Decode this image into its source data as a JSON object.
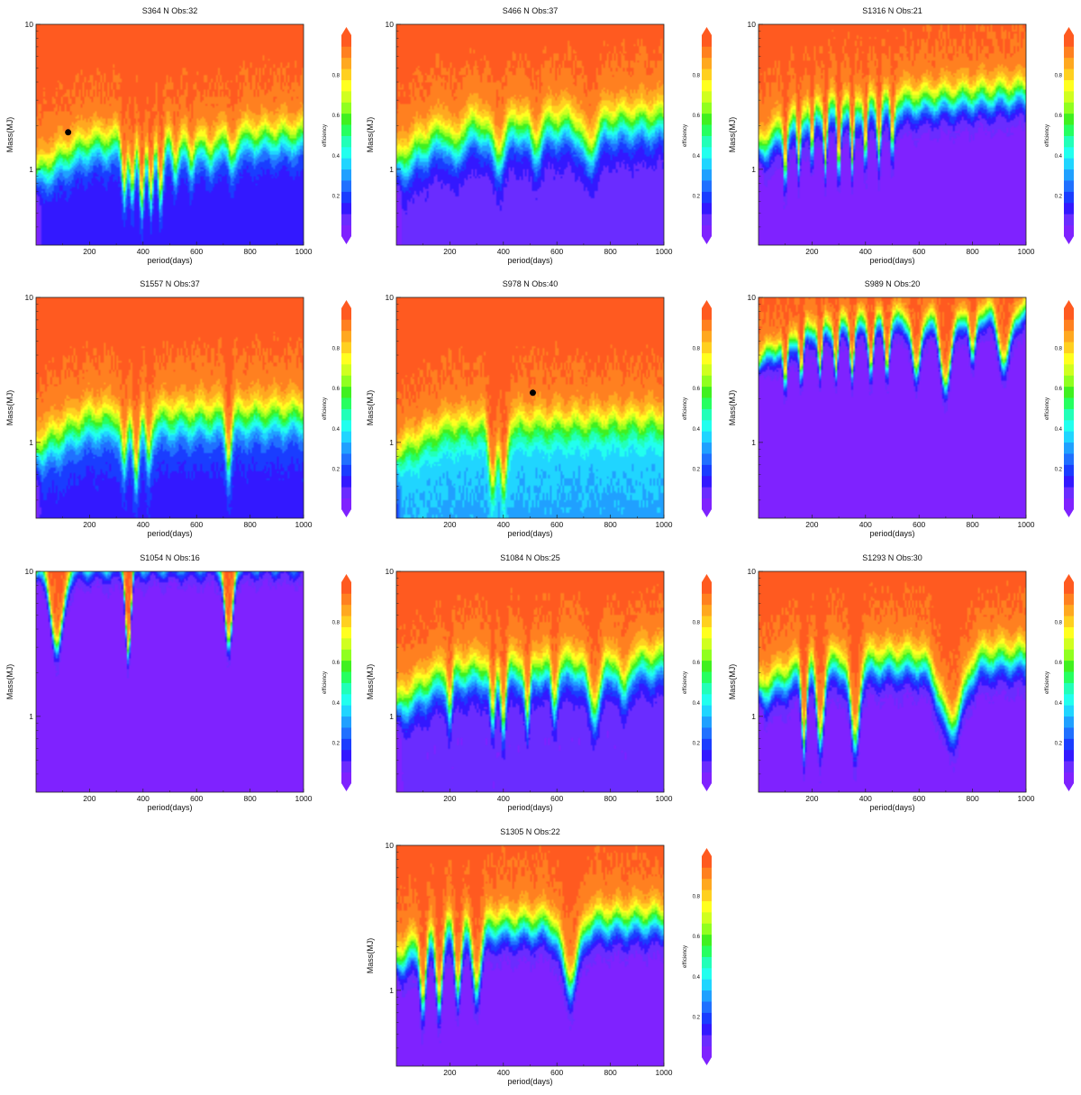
{
  "palette": [
    "#7f22ff",
    "#6a2cff",
    "#3318ff",
    "#1a3dff",
    "#2070ff",
    "#20a0ff",
    "#20d5ff",
    "#22ffee",
    "#22ffb8",
    "#26ff60",
    "#40f020",
    "#90ff20",
    "#d0ff20",
    "#ffff20",
    "#ffd020",
    "#ffa820",
    "#ff8020",
    "#ff5a20"
  ],
  "chart_data": [
    {
      "type": "heatmap",
      "title": "S364 N Obs:32",
      "xlabel": "period(days)",
      "ylabel": "Mass(MJ)",
      "colorbar_label": "efficiency",
      "xlim": [
        0,
        1000
      ],
      "ylim": [
        0.3,
        10
      ],
      "yscale": "log",
      "xticks": [
        200,
        400,
        600,
        800,
        1000
      ],
      "yticks": [
        1,
        10
      ],
      "cbar_ticks": [
        0.2,
        0.4,
        0.6,
        0.8
      ],
      "base_level": 0.13,
      "threshold_mass": [
        [
          0,
          0.9
        ],
        [
          200,
          1.45
        ],
        [
          1000,
          1.65
        ]
      ],
      "sharpness": 3.2,
      "spikes": [
        [
          330,
          0.3,
          12
        ],
        [
          360,
          0.35,
          12
        ],
        [
          395,
          0.4,
          12
        ],
        [
          430,
          0.4,
          12
        ],
        [
          465,
          0.35,
          12
        ],
        [
          520,
          0.2,
          14
        ],
        [
          580,
          0.2,
          15
        ],
        [
          650,
          0.15,
          18
        ],
        [
          730,
          0.15,
          18
        ]
      ],
      "points": [
        {
          "x": 120,
          "y": 1.8
        }
      ]
    },
    {
      "type": "heatmap",
      "title": "S466 N Obs:37",
      "xlabel": "period(days)",
      "ylabel": "Mass(MJ)",
      "colorbar_label": "efficiency",
      "xlim": [
        0,
        1000
      ],
      "ylim": [
        0.3,
        10
      ],
      "yscale": "log",
      "xticks": [
        200,
        400,
        600,
        800,
        1000
      ],
      "yticks": [
        1,
        10
      ],
      "cbar_ticks": [
        0.2,
        0.4,
        0.6,
        0.8
      ],
      "base_level": 0.08,
      "threshold_mass": [
        [
          0,
          1.0
        ],
        [
          200,
          1.8
        ],
        [
          1000,
          2.1
        ]
      ],
      "sharpness": 2.8,
      "spikes": [
        [
          220,
          0.15,
          25
        ],
        [
          380,
          0.2,
          30
        ],
        [
          520,
          0.15,
          25
        ],
        [
          720,
          0.2,
          35
        ]
      ],
      "points": []
    },
    {
      "type": "heatmap",
      "title": "S1316 N Obs:21",
      "xlabel": "period(days)",
      "ylabel": "Mass(MJ)",
      "colorbar_label": "efficiency",
      "xlim": [
        0,
        1000
      ],
      "ylim": [
        0.3,
        10
      ],
      "yscale": "log",
      "xticks": [
        200,
        400,
        600,
        800,
        1000
      ],
      "yticks": [
        1,
        10
      ],
      "cbar_ticks": [
        0.2,
        0.4,
        0.6,
        0.8
      ],
      "base_level": 0.02,
      "threshold_mass": [
        [
          0,
          1.3
        ],
        [
          200,
          2.4
        ],
        [
          1000,
          3.3
        ]
      ],
      "sharpness": 3.5,
      "spikes": [
        [
          100,
          0.3,
          8
        ],
        [
          150,
          0.3,
          8
        ],
        [
          200,
          0.3,
          8
        ],
        [
          250,
          0.35,
          8
        ],
        [
          300,
          0.4,
          8
        ],
        [
          350,
          0.4,
          8
        ],
        [
          400,
          0.35,
          8
        ],
        [
          450,
          0.3,
          9
        ],
        [
          500,
          0.3,
          9
        ]
      ],
      "points": []
    },
    {
      "type": "heatmap",
      "title": "S1557 N Obs:37",
      "xlabel": "period(days)",
      "ylabel": "Mass(MJ)",
      "colorbar_label": "efficiency",
      "xlim": [
        0,
        1000
      ],
      "ylim": [
        0.3,
        10
      ],
      "yscale": "log",
      "xticks": [
        200,
        400,
        600,
        800,
        1000
      ],
      "yticks": [
        1,
        10
      ],
      "cbar_ticks": [
        0.2,
        0.4,
        0.6,
        0.8
      ],
      "base_level": 0.15,
      "threshold_mass": [
        [
          0,
          0.85
        ],
        [
          200,
          1.35
        ],
        [
          1000,
          1.5
        ]
      ],
      "sharpness": 2.8,
      "spikes": [
        [
          330,
          0.3,
          14
        ],
        [
          375,
          0.35,
          14
        ],
        [
          420,
          0.25,
          14
        ],
        [
          720,
          0.3,
          14
        ]
      ],
      "points": []
    },
    {
      "type": "heatmap",
      "title": "S978 N Obs:40",
      "xlabel": "period(days)",
      "ylabel": "Mass(MJ)",
      "colorbar_label": "efficiency",
      "xlim": [
        0,
        1000
      ],
      "ylim": [
        0.3,
        10
      ],
      "yscale": "log",
      "xticks": [
        200,
        400,
        600,
        800,
        1000
      ],
      "yticks": [
        1,
        10
      ],
      "cbar_ticks": [
        0.2,
        0.4,
        0.6,
        0.8
      ],
      "base_level": 0.33,
      "threshold_mass": [
        [
          0,
          0.8
        ],
        [
          200,
          1.25
        ],
        [
          1000,
          1.35
        ]
      ],
      "sharpness": 3.0,
      "spikes": [
        [
          360,
          0.4,
          18
        ],
        [
          400,
          0.45,
          16
        ]
      ],
      "points": [
        {
          "x": 510,
          "y": 2.2
        }
      ]
    },
    {
      "type": "heatmap",
      "title": "S989 N Obs:20",
      "xlabel": "period(days)",
      "ylabel": "Mass(MJ)",
      "colorbar_label": "efficiency",
      "xlim": [
        0,
        1000
      ],
      "ylim": [
        0.3,
        10
      ],
      "yscale": "log",
      "xticks": [
        200,
        400,
        600,
        800,
        1000
      ],
      "yticks": [
        1,
        10
      ],
      "cbar_ticks": [
        0.2,
        0.4,
        0.6,
        0.8
      ],
      "base_level": 0.02,
      "threshold_mass": [
        [
          0,
          3.5
        ],
        [
          200,
          6.0
        ],
        [
          1000,
          8.0
        ]
      ],
      "sharpness": 5.0,
      "spikes": [
        [
          100,
          0.3,
          10
        ],
        [
          160,
          0.3,
          10
        ],
        [
          230,
          0.3,
          10
        ],
        [
          290,
          0.3,
          10
        ],
        [
          350,
          0.3,
          10
        ],
        [
          420,
          0.3,
          12
        ],
        [
          480,
          0.3,
          12
        ],
        [
          590,
          0.4,
          20
        ],
        [
          700,
          0.45,
          30
        ],
        [
          800,
          0.3,
          15
        ],
        [
          920,
          0.35,
          30
        ]
      ],
      "points": []
    },
    {
      "type": "heatmap",
      "title": "S1054 N Obs:16",
      "xlabel": "period(days)",
      "ylabel": "Mass(MJ)",
      "colorbar_label": "efficiency",
      "xlim": [
        0,
        1000
      ],
      "ylim": [
        0.3,
        10
      ],
      "yscale": "log",
      "xticks": [
        200,
        400,
        600,
        800,
        1000
      ],
      "yticks": [
        1,
        10
      ],
      "cbar_ticks": [
        0.2,
        0.4,
        0.6,
        0.8
      ],
      "base_level": 0.02,
      "threshold_mass": [
        [
          0,
          9.5
        ],
        [
          200,
          11
        ],
        [
          1000,
          12
        ]
      ],
      "sharpness": 5.0,
      "spikes": [
        [
          80,
          0.55,
          30
        ],
        [
          345,
          0.6,
          14
        ],
        [
          720,
          0.6,
          20
        ]
      ],
      "points": []
    },
    {
      "type": "heatmap",
      "title": "S1084 N Obs:25",
      "xlabel": "period(days)",
      "ylabel": "Mass(MJ)",
      "colorbar_label": "efficiency",
      "xlim": [
        0,
        1000
      ],
      "ylim": [
        0.3,
        10
      ],
      "yscale": "log",
      "xticks": [
        200,
        400,
        600,
        800,
        1000
      ],
      "yticks": [
        1,
        10
      ],
      "cbar_ticks": [
        0.2,
        0.4,
        0.6,
        0.8
      ],
      "base_level": 0.06,
      "threshold_mass": [
        [
          0,
          1.1
        ],
        [
          200,
          1.9
        ],
        [
          1000,
          2.3
        ]
      ],
      "sharpness": 3.0,
      "spikes": [
        [
          200,
          0.25,
          12
        ],
        [
          360,
          0.35,
          12
        ],
        [
          400,
          0.35,
          12
        ],
        [
          490,
          0.35,
          12
        ],
        [
          590,
          0.25,
          14
        ],
        [
          740,
          0.3,
          30
        ],
        [
          850,
          0.2,
          20
        ]
      ],
      "points": []
    },
    {
      "type": "heatmap",
      "title": "S1293 N Obs:30",
      "xlabel": "period(days)",
      "ylabel": "Mass(MJ)",
      "colorbar_label": "efficiency",
      "xlim": [
        0,
        1000
      ],
      "ylim": [
        0.3,
        10
      ],
      "yscale": "log",
      "xticks": [
        200,
        400,
        600,
        800,
        1000
      ],
      "yticks": [
        1,
        10
      ],
      "cbar_ticks": [
        0.2,
        0.4,
        0.6,
        0.8
      ],
      "base_level": 0.02,
      "threshold_mass": [
        [
          0,
          1.4
        ],
        [
          200,
          2.2
        ],
        [
          1000,
          2.5
        ]
      ],
      "sharpness": 3.3,
      "spikes": [
        [
          170,
          0.5,
          12
        ],
        [
          230,
          0.5,
          18
        ],
        [
          360,
          0.55,
          22
        ],
        [
          720,
          0.45,
          60
        ]
      ],
      "points": []
    },
    {
      "type": "heatmap",
      "title": "S1305 N Obs:22",
      "xlabel": "period(days)",
      "ylabel": "Mass(MJ)",
      "colorbar_label": "efficiency",
      "xlim": [
        0,
        1000
      ],
      "ylim": [
        0.3,
        10
      ],
      "yscale": "log",
      "xticks": [
        200,
        400,
        600,
        800,
        1000
      ],
      "yticks": [
        1,
        10
      ],
      "cbar_ticks": [
        0.2,
        0.4,
        0.6,
        0.8
      ],
      "base_level": 0.02,
      "threshold_mass": [
        [
          0,
          1.5
        ],
        [
          200,
          2.6
        ],
        [
          1000,
          3.0
        ]
      ],
      "sharpness": 3.3,
      "spikes": [
        [
          100,
          0.4,
          14
        ],
        [
          160,
          0.45,
          16
        ],
        [
          230,
          0.4,
          16
        ],
        [
          300,
          0.4,
          22
        ],
        [
          650,
          0.4,
          40
        ]
      ],
      "points": []
    }
  ]
}
